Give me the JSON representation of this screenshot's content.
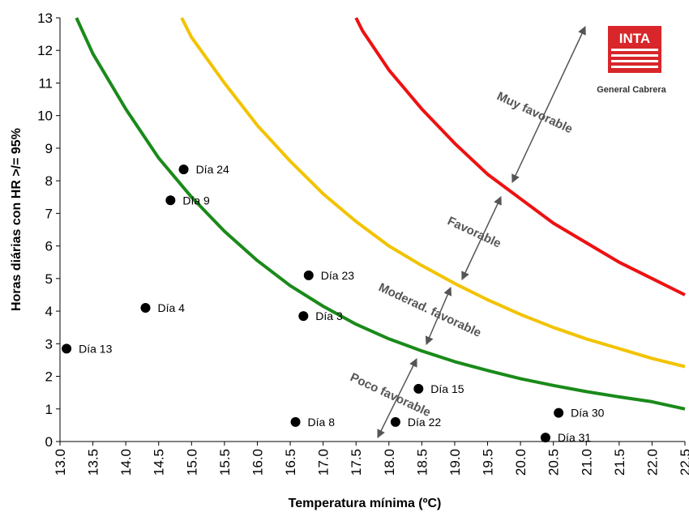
{
  "chart_data": {
    "type": "scatter",
    "xlabel": "Temperatura mínima (ºC)",
    "ylabel": "Horas diárias con HR >/= 95%",
    "xlim": [
      13.0,
      22.5
    ],
    "ylim": [
      0,
      13
    ],
    "x_ticks": [
      "13.0",
      "13.5",
      "14.0",
      "14.5",
      "15.0",
      "15.5",
      "16.0",
      "16.5",
      "17.0",
      "17.5",
      "18.0",
      "18.5",
      "19.0",
      "19.5",
      "20.0",
      "20.5",
      "21.0",
      "21.5",
      "22.0",
      "22.5"
    ],
    "y_ticks": [
      "0",
      "1",
      "2",
      "3",
      "4",
      "5",
      "6",
      "7",
      "8",
      "9",
      "10",
      "11",
      "12",
      "13"
    ],
    "grid": false,
    "curves": [
      {
        "color": "#1a8a1a",
        "points": [
          [
            13.25,
            13
          ],
          [
            13.5,
            11.9
          ],
          [
            14.0,
            10.2
          ],
          [
            14.5,
            8.7
          ],
          [
            15.0,
            7.5
          ],
          [
            15.5,
            6.45
          ],
          [
            16.0,
            5.55
          ],
          [
            16.5,
            4.78
          ],
          [
            17.0,
            4.15
          ],
          [
            17.5,
            3.6
          ],
          [
            18.0,
            3.15
          ],
          [
            18.5,
            2.78
          ],
          [
            19.0,
            2.45
          ],
          [
            19.5,
            2.18
          ],
          [
            20.0,
            1.93
          ],
          [
            20.5,
            1.72
          ],
          [
            21.0,
            1.53
          ],
          [
            21.5,
            1.37
          ],
          [
            22.0,
            1.22
          ],
          [
            22.5,
            1.0
          ]
        ]
      },
      {
        "color": "#f2c300",
        "points": [
          [
            14.85,
            13
          ],
          [
            15.0,
            12.4
          ],
          [
            15.5,
            11.0
          ],
          [
            16.0,
            9.7
          ],
          [
            16.5,
            8.6
          ],
          [
            17.0,
            7.6
          ],
          [
            17.5,
            6.75
          ],
          [
            18.0,
            6.0
          ],
          [
            18.5,
            5.4
          ],
          [
            19.0,
            4.85
          ],
          [
            19.5,
            4.35
          ],
          [
            20.0,
            3.9
          ],
          [
            20.5,
            3.5
          ],
          [
            21.0,
            3.15
          ],
          [
            21.5,
            2.85
          ],
          [
            22.0,
            2.55
          ],
          [
            22.5,
            2.3
          ]
        ]
      },
      {
        "color": "#ee1111",
        "points": [
          [
            17.5,
            13
          ],
          [
            17.6,
            12.6
          ],
          [
            18.0,
            11.4
          ],
          [
            18.5,
            10.2
          ],
          [
            19.0,
            9.15
          ],
          [
            19.5,
            8.2
          ],
          [
            20.0,
            7.45
          ],
          [
            20.5,
            6.7
          ],
          [
            21.0,
            6.1
          ],
          [
            21.5,
            5.5
          ],
          [
            22.0,
            5.0
          ],
          [
            22.5,
            4.5
          ]
        ]
      }
    ],
    "points": [
      {
        "label": "Día 24",
        "x": 14.88,
        "y": 8.35
      },
      {
        "label": "Día 9",
        "x": 14.68,
        "y": 7.4
      },
      {
        "label": "Día 23",
        "x": 16.78,
        "y": 5.1
      },
      {
        "label": "Día 4",
        "x": 14.3,
        "y": 4.1
      },
      {
        "label": "Día 3",
        "x": 16.7,
        "y": 3.85
      },
      {
        "label": "Día 13",
        "x": 13.1,
        "y": 2.85
      },
      {
        "label": "Día 15",
        "x": 18.45,
        "y": 1.62
      },
      {
        "label": "Día 30",
        "x": 20.58,
        "y": 0.88
      },
      {
        "label": "Día 8",
        "x": 16.58,
        "y": 0.6
      },
      {
        "label": "Día 22",
        "x": 18.1,
        "y": 0.6
      },
      {
        "label": "Día 31",
        "x": 20.38,
        "y": 0.12
      }
    ],
    "zones": [
      "Muy favorable",
      "Favorable",
      "Moderad. favorable",
      "Poco favorable"
    ]
  },
  "logo": {
    "name": "INTA",
    "subtitle": "General Cabrera",
    "color": "#d8262a"
  }
}
